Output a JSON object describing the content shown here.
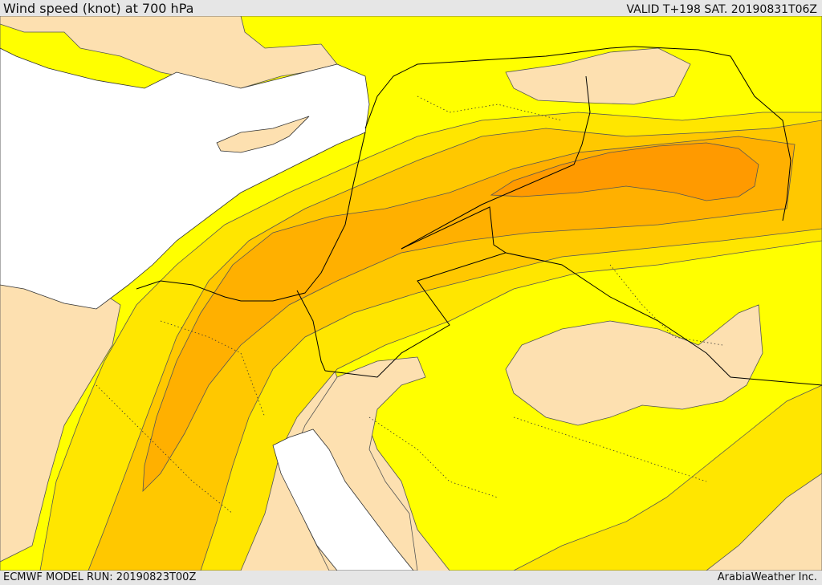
{
  "header": {
    "title": "Wind speed (knot) at 700 hPa",
    "valid_time": "VALID T+198 SAT. 20190831T06Z"
  },
  "footer": {
    "model_run": "ECMWF MODEL RUN: 20190823T00Z",
    "credit": "ArabiaWeather Inc."
  },
  "colors": {
    "sea": "#ffffff",
    "land_calm": "#fde0b0",
    "wind_band_1": "#ffff00",
    "wind_band_2": "#ffe600",
    "wind_band_3": "#ffc800",
    "wind_band_4": "#ffb000",
    "wind_band_5": "#ff9a00",
    "contour": "#555555",
    "border": "#000000"
  },
  "chart_data": {
    "type": "contour-map",
    "variable": "Wind speed (knot) at 700 hPa",
    "legend": "none"
  }
}
